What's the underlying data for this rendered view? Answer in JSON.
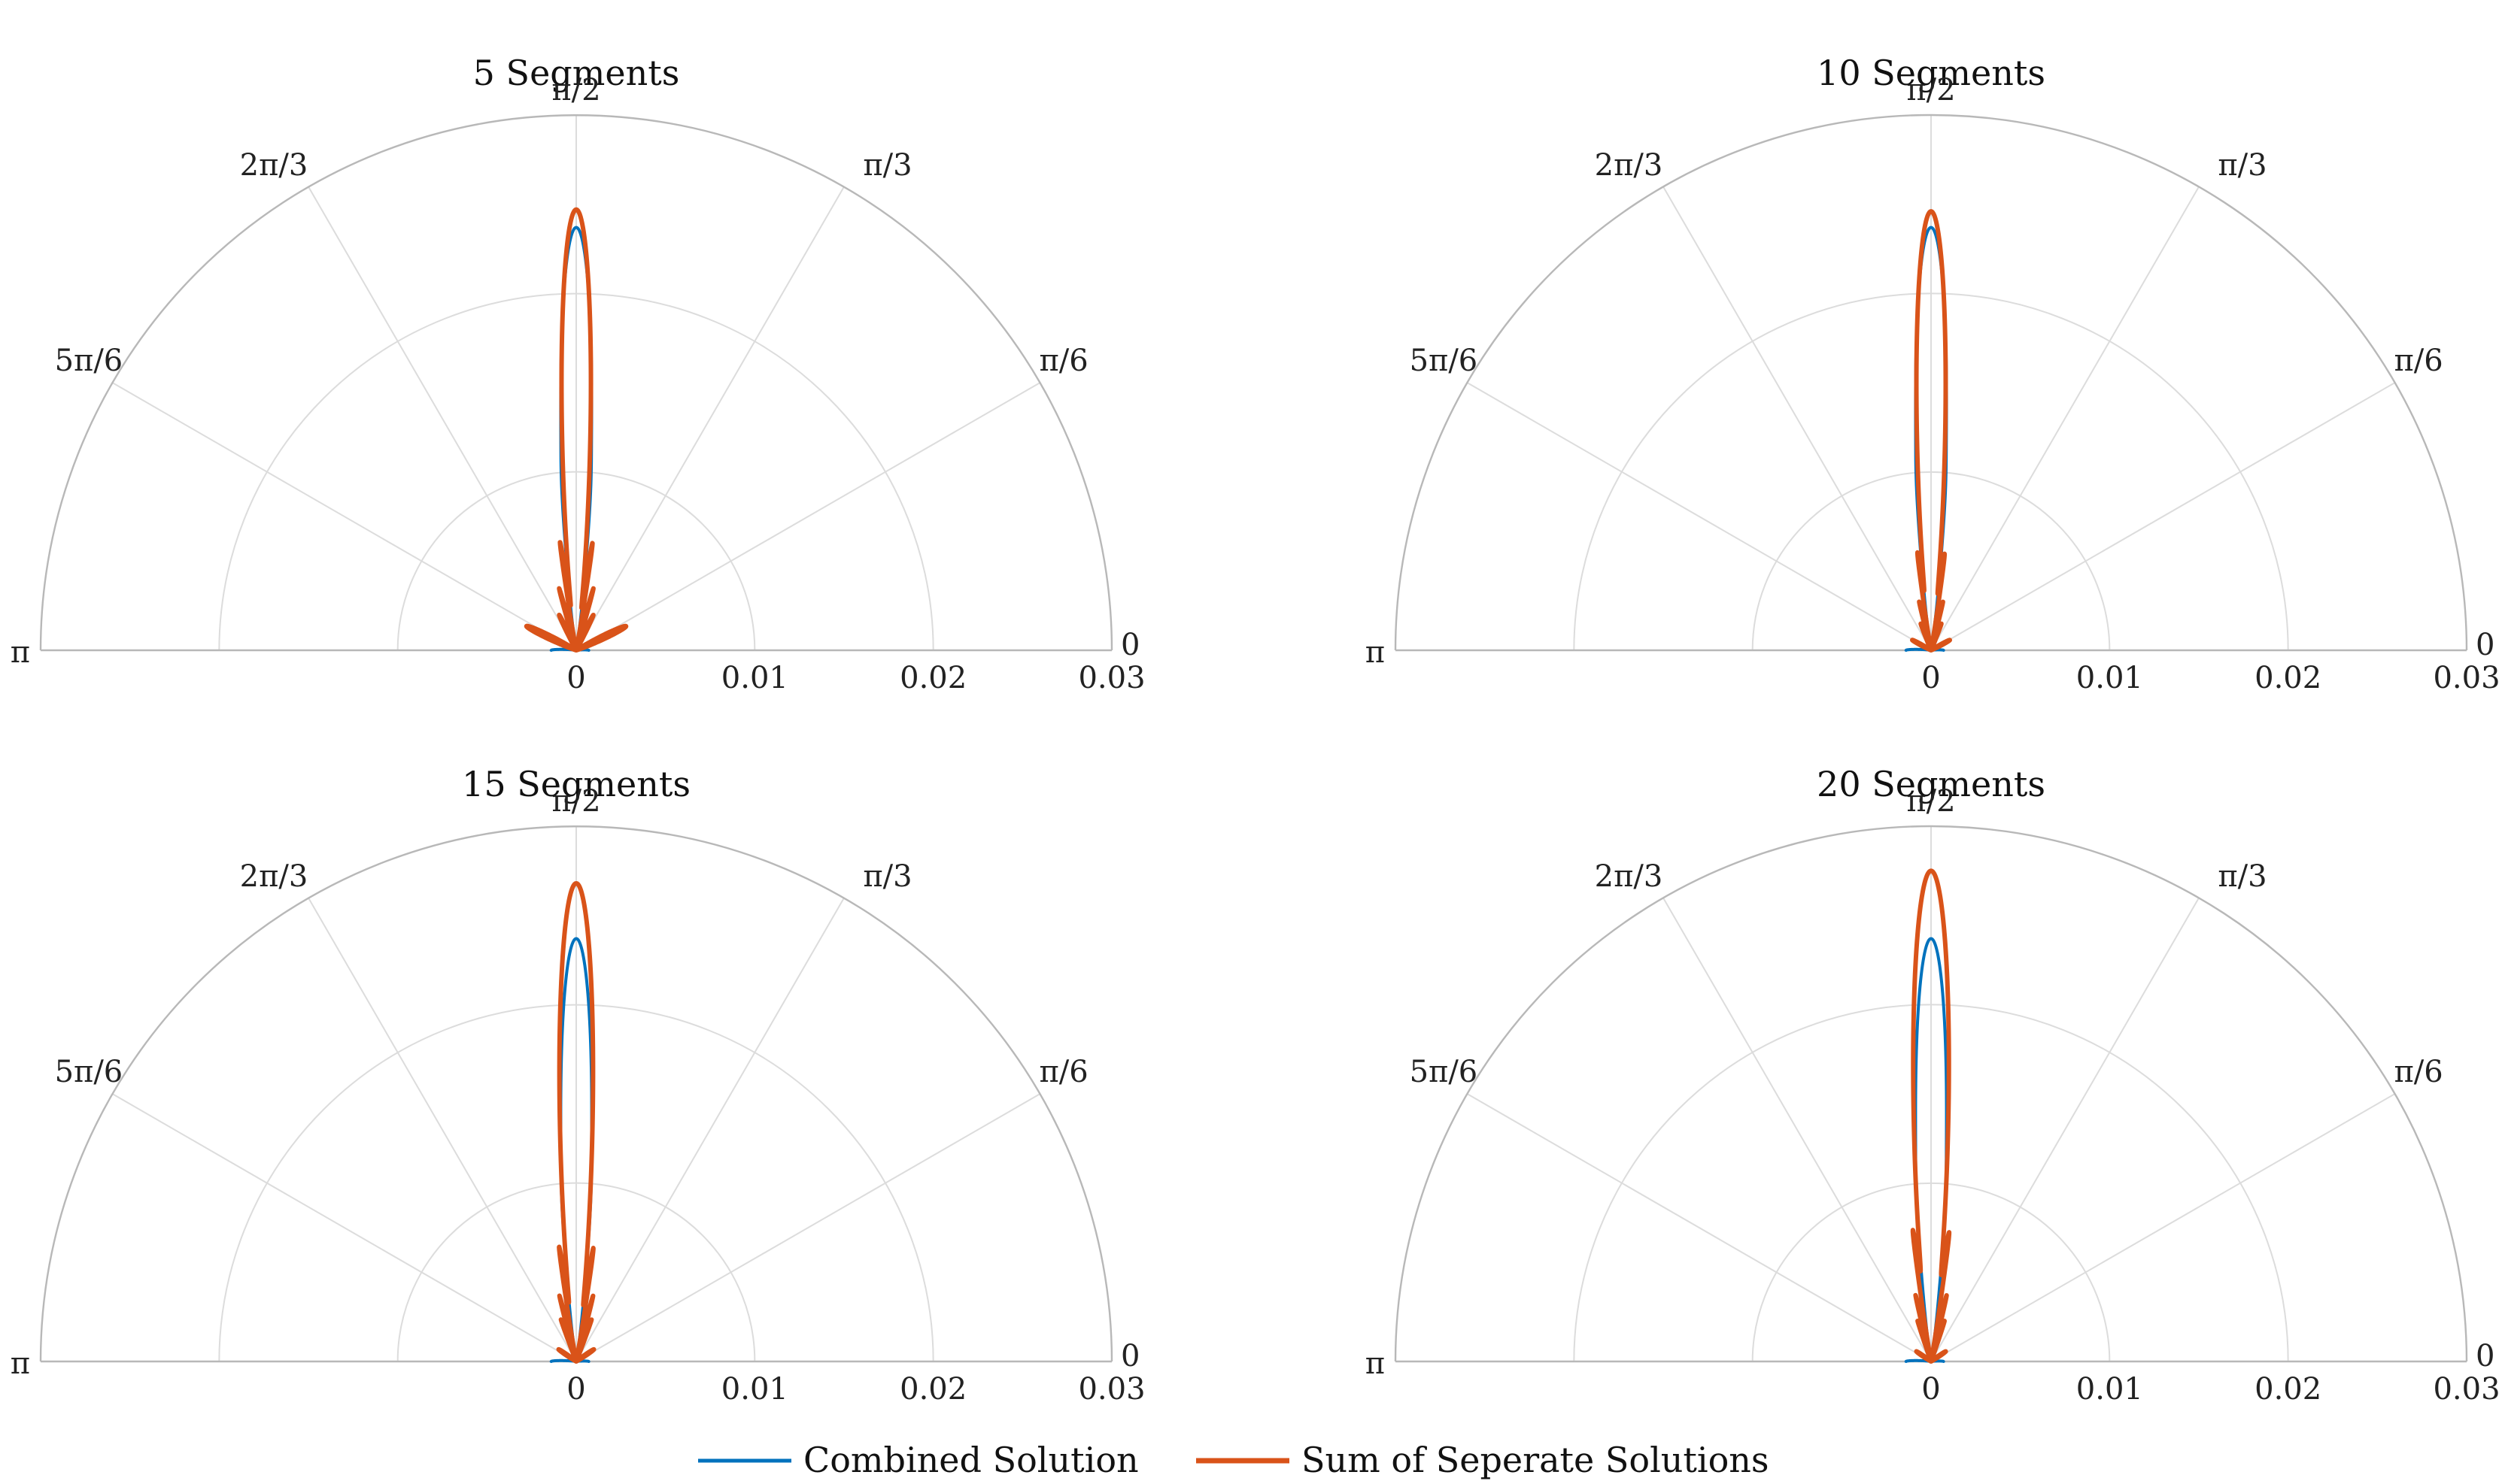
{
  "chart_data": [
    {
      "type": "polar-line",
      "title": "5 Segments",
      "theta_range": [
        0,
        3.14159
      ],
      "r_range": [
        0,
        0.03
      ],
      "r_ticks": [
        "0",
        "0.01",
        "0.02",
        "0.03"
      ],
      "theta_ticks": [
        "0",
        "π/6",
        "π/3",
        "π/2",
        "2π/3",
        "5π/6",
        "π"
      ],
      "series": [
        {
          "name": "Combined Solution",
          "color": "#0072BD",
          "main_lobe_peak": 0.0237,
          "main_lobe_halfwidth_rad": 0.06,
          "side_lobes": [
            {
              "angle": 1.48,
              "peak": 0.0013,
              "width": 0.012
            },
            {
              "angle": 1.66,
              "peak": 0.0013,
              "width": 0.012
            }
          ],
          "back_lobe": 0.0014
        },
        {
          "name": "Sum of Seperate Solutions",
          "color": "#D95319",
          "main_lobe_peak": 0.0247,
          "main_lobe_halfwidth_rad": 0.055,
          "side_lobes": [
            {
              "angle": 1.42,
              "peak": 0.0055,
              "width": 0.012
            },
            {
              "angle": 1.72,
              "peak": 0.0055,
              "width": 0.012
            },
            {
              "angle": 1.3,
              "peak": 0.0036,
              "width": 0.014
            },
            {
              "angle": 1.84,
              "peak": 0.0036,
              "width": 0.014
            },
            {
              "angle": 1.12,
              "peak": 0.0022,
              "width": 0.03
            },
            {
              "angle": 2.02,
              "peak": 0.0022,
              "width": 0.03
            },
            {
              "angle": 0.45,
              "peak": 0.0031,
              "width": 0.06
            },
            {
              "angle": 2.69,
              "peak": 0.0031,
              "width": 0.06
            }
          ],
          "back_lobe": 0
        }
      ]
    },
    {
      "type": "polar-line",
      "title": "10 Segments",
      "theta_range": [
        0,
        3.14159
      ],
      "r_range": [
        0,
        0.03
      ],
      "r_ticks": [
        "0",
        "0.01",
        "0.02",
        "0.03"
      ],
      "theta_ticks": [
        "0",
        "π/6",
        "π/3",
        "π/2",
        "2π/3",
        "5π/6",
        "π"
      ],
      "series": [
        {
          "name": "Combined Solution",
          "color": "#0072BD",
          "main_lobe_peak": 0.0237,
          "main_lobe_halfwidth_rad": 0.06,
          "side_lobes": [
            {
              "angle": 1.48,
              "peak": 0.0013,
              "width": 0.012
            },
            {
              "angle": 1.66,
              "peak": 0.0013,
              "width": 0.012
            }
          ],
          "back_lobe": 0.0014
        },
        {
          "name": "Sum of Seperate Solutions",
          "color": "#D95319",
          "main_lobe_peak": 0.0246,
          "main_lobe_halfwidth_rad": 0.055,
          "side_lobes": [
            {
              "angle": 1.43,
              "peak": 0.0045,
              "width": 0.012
            },
            {
              "angle": 1.71,
              "peak": 0.0045,
              "width": 0.012
            },
            {
              "angle": 1.33,
              "peak": 0.0028,
              "width": 0.012
            },
            {
              "angle": 1.81,
              "peak": 0.0028,
              "width": 0.012
            },
            {
              "angle": 1.2,
              "peak": 0.0016,
              "width": 0.02
            },
            {
              "angle": 1.94,
              "peak": 0.0016,
              "width": 0.02
            },
            {
              "angle": 0.5,
              "peak": 0.0012,
              "width": 0.05
            },
            {
              "angle": 2.64,
              "peak": 0.0012,
              "width": 0.05
            }
          ],
          "back_lobe": 0
        }
      ]
    },
    {
      "type": "polar-line",
      "title": "15 Segments",
      "theta_range": [
        0,
        3.14159
      ],
      "r_range": [
        0,
        0.03
      ],
      "r_ticks": [
        "0",
        "0.01",
        "0.02",
        "0.03"
      ],
      "theta_ticks": [
        "0",
        "π/6",
        "π/3",
        "π/2",
        "2π/3",
        "5π/6",
        "π"
      ],
      "series": [
        {
          "name": "Combined Solution",
          "color": "#0072BD",
          "main_lobe_peak": 0.0237,
          "main_lobe_halfwidth_rad": 0.06,
          "side_lobes": [
            {
              "angle": 1.48,
              "peak": 0.0013,
              "width": 0.012
            },
            {
              "angle": 1.66,
              "peak": 0.0013,
              "width": 0.012
            }
          ],
          "back_lobe": 0.0014
        },
        {
          "name": "Sum of Seperate Solutions",
          "color": "#D95319",
          "main_lobe_peak": 0.0268,
          "main_lobe_halfwidth_rad": 0.058,
          "side_lobes": [
            {
              "angle": 1.42,
              "peak": 0.0055,
              "width": 0.012
            },
            {
              "angle": 1.72,
              "peak": 0.0055,
              "width": 0.012
            },
            {
              "angle": 1.32,
              "peak": 0.0038,
              "width": 0.012
            },
            {
              "angle": 1.82,
              "peak": 0.0038,
              "width": 0.012
            },
            {
              "angle": 1.22,
              "peak": 0.0025,
              "width": 0.014
            },
            {
              "angle": 1.92,
              "peak": 0.0025,
              "width": 0.014
            },
            {
              "angle": 0.6,
              "peak": 0.0012,
              "width": 0.05
            },
            {
              "angle": 2.54,
              "peak": 0.0012,
              "width": 0.05
            }
          ],
          "back_lobe": 0
        }
      ]
    },
    {
      "type": "polar-line",
      "title": "20 Segments",
      "theta_range": [
        0,
        3.14159
      ],
      "r_range": [
        0,
        0.03
      ],
      "r_ticks": [
        "0",
        "0.01",
        "0.02",
        "0.03"
      ],
      "theta_ticks": [
        "0",
        "π/6",
        "π/3",
        "π/2",
        "2π/3",
        "5π/6",
        "π"
      ],
      "series": [
        {
          "name": "Combined Solution",
          "color": "#0072BD",
          "main_lobe_peak": 0.0237,
          "main_lobe_halfwidth_rad": 0.06,
          "side_lobes": [
            {
              "angle": 1.48,
              "peak": 0.0013,
              "width": 0.012
            },
            {
              "angle": 1.66,
              "peak": 0.0013,
              "width": 0.012
            }
          ],
          "back_lobe": 0.0014
        },
        {
          "name": "Sum of Seperate Solutions",
          "color": "#D95319",
          "main_lobe_peak": 0.0275,
          "main_lobe_halfwidth_rad": 0.06,
          "side_lobes": [
            {
              "angle": 1.43,
              "peak": 0.0055,
              "width": 0.012
            },
            {
              "angle": 1.71,
              "peak": 0.0055,
              "width": 0.012
            },
            {
              "angle": 1.34,
              "peak": 0.0038,
              "width": 0.012
            },
            {
              "angle": 1.8,
              "peak": 0.0038,
              "width": 0.012
            },
            {
              "angle": 1.25,
              "peak": 0.0024,
              "width": 0.014
            },
            {
              "angle": 1.89,
              "peak": 0.0024,
              "width": 0.014
            },
            {
              "angle": 0.6,
              "peak": 0.001,
              "width": 0.05
            },
            {
              "angle": 2.54,
              "peak": 0.001,
              "width": 0.05
            }
          ],
          "back_lobe": 0
        }
      ]
    }
  ],
  "legend": {
    "position": "bottom-center",
    "items": [
      {
        "label": "Combined Solution",
        "color": "#0072BD"
      },
      {
        "label": "Sum of Seperate Solutions",
        "color": "#D95319"
      }
    ]
  }
}
